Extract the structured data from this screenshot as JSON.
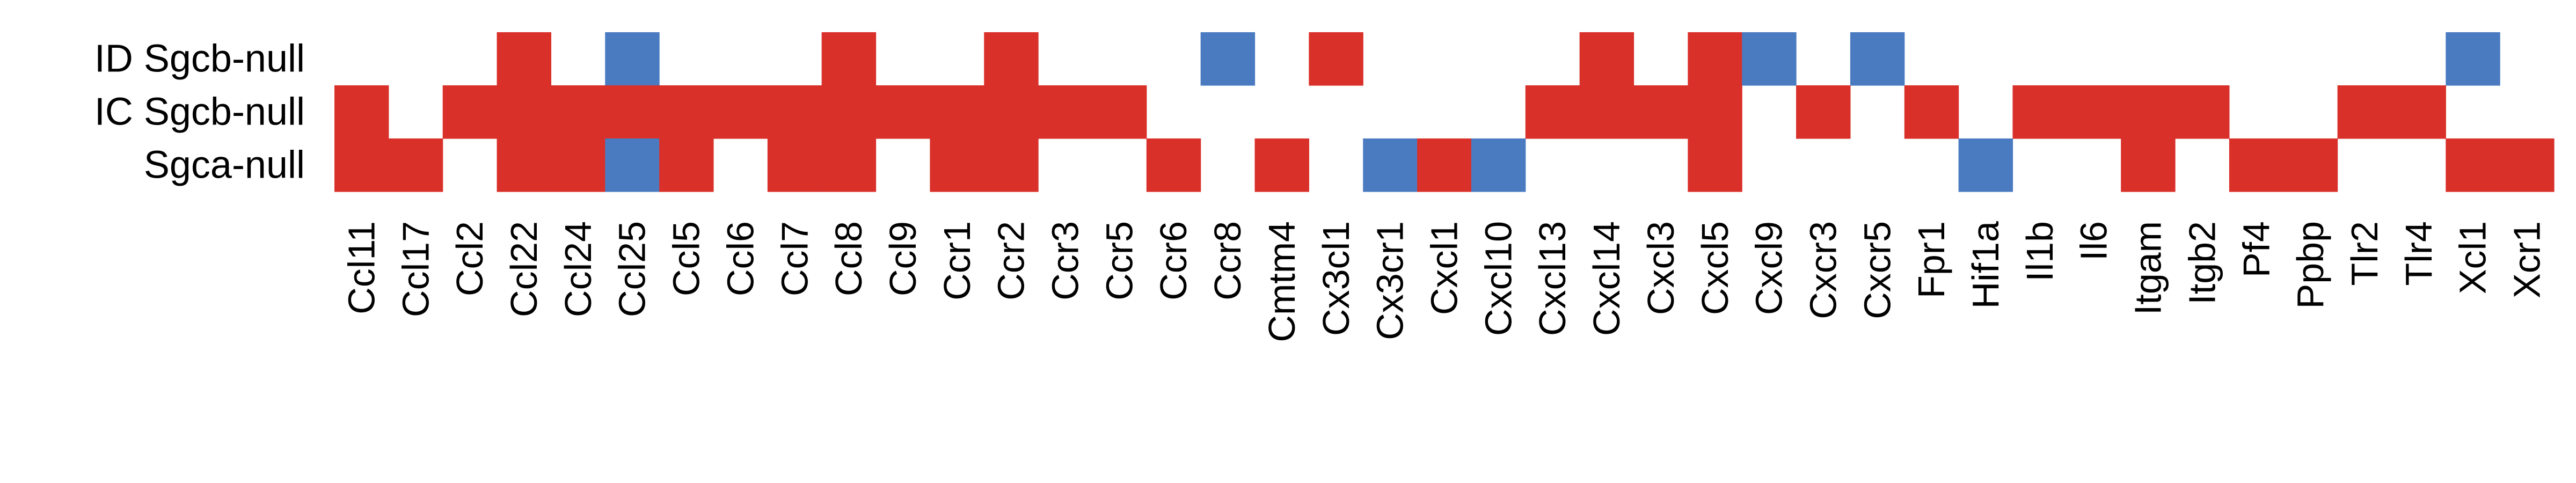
{
  "chart_data": {
    "type": "heatmap",
    "title": "",
    "xlabel": "",
    "ylabel": "",
    "grid": false,
    "legend": "none",
    "colors": {
      "up": "#d9302a",
      "down": "#4a7bc0",
      "none": "#ffffff"
    },
    "rows": [
      "ID Sgcb-null",
      "IC Sgcb-null",
      "Sgca-null"
    ],
    "columns": [
      "Ccl11",
      "Ccl17",
      "Ccl2",
      "Ccl22",
      "Ccl24",
      "Ccl25",
      "Ccl5",
      "Ccl6",
      "Ccl7",
      "Ccl8",
      "Ccl9",
      "Ccr1",
      "Ccr2",
      "Ccr3",
      "Ccr5",
      "Ccr6",
      "Ccr8",
      "Cmtm4",
      "Cx3cl1",
      "Cx3cr1",
      "Cxcl1",
      "Cxcl10",
      "Cxcl13",
      "Cxcl14",
      "Cxcl3",
      "Cxcl5",
      "Cxcl9",
      "Cxcr3",
      "Cxcr5",
      "Fpr1",
      "Hif1a",
      "Il1b",
      "Il6",
      "Itgam",
      "Itgb2",
      "Pf4",
      "Ppbp",
      "Tlr2",
      "Tlr4",
      "Xcl1",
      "Xcr1"
    ],
    "values": [
      [
        0,
        0,
        0,
        1,
        0,
        -1,
        0,
        0,
        0,
        1,
        0,
        0,
        1,
        0,
        0,
        0,
        -1,
        0,
        1,
        0,
        0,
        0,
        0,
        1,
        0,
        1,
        -1,
        0,
        -1,
        0,
        0,
        0,
        0,
        0,
        0,
        0,
        0,
        0,
        0,
        -1,
        0
      ],
      [
        1,
        0,
        1,
        1,
        1,
        1,
        1,
        1,
        1,
        1,
        1,
        1,
        1,
        1,
        1,
        0,
        0,
        0,
        0,
        0,
        0,
        0,
        1,
        1,
        1,
        1,
        0,
        1,
        0,
        1,
        0,
        1,
        1,
        1,
        1,
        0,
        0,
        1,
        1,
        0,
        0
      ],
      [
        1,
        1,
        0,
        1,
        1,
        -1,
        1,
        0,
        1,
        1,
        0,
        1,
        1,
        0,
        0,
        1,
        0,
        1,
        0,
        -1,
        1,
        -1,
        0,
        0,
        0,
        1,
        0,
        0,
        0,
        0,
        -1,
        0,
        0,
        1,
        0,
        1,
        1,
        0,
        0,
        1,
        1
      ]
    ]
  }
}
